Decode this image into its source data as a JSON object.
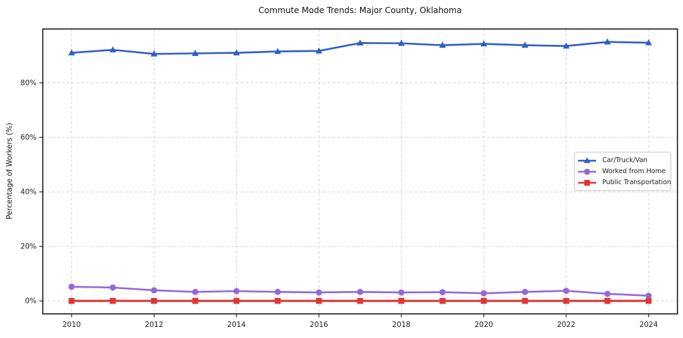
{
  "chart_data": {
    "type": "line",
    "title": "Commute Mode Trends: Major County, Oklahoma",
    "xlabel": "",
    "ylabel": "Percentage of Workers (%)",
    "x": [
      2010,
      2011,
      2012,
      2013,
      2014,
      2015,
      2016,
      2017,
      2018,
      2019,
      2020,
      2021,
      2022,
      2023,
      2024
    ],
    "series": [
      {
        "name": "Car/Truck/Van",
        "color": "#2d5fc5",
        "marker": "triangle",
        "values": [
          91.0,
          92.1,
          90.6,
          90.8,
          91.0,
          91.5,
          91.7,
          94.6,
          94.5,
          93.8,
          94.3,
          93.8,
          93.5,
          95.0,
          94.7
        ]
      },
      {
        "name": "Worked from Home",
        "color": "#9467db",
        "marker": "circle",
        "values": [
          5.2,
          4.9,
          3.9,
          3.3,
          3.6,
          3.3,
          3.1,
          3.3,
          3.1,
          3.2,
          2.8,
          3.3,
          3.7,
          2.6,
          1.9
        ]
      },
      {
        "name": "Public Transportation",
        "color": "#e23636",
        "marker": "square",
        "values": [
          0.0,
          0.0,
          0.0,
          0.0,
          0.0,
          0.0,
          0.0,
          0.0,
          0.0,
          0.0,
          0.0,
          0.0,
          0.0,
          0.0,
          0.0
        ]
      }
    ],
    "xticks": [
      2010,
      2012,
      2014,
      2016,
      2018,
      2020,
      2022,
      2024
    ],
    "yticks": [
      0,
      20,
      40,
      60,
      80
    ],
    "ytick_suffix": "%",
    "xlim": [
      2009.3,
      2024.7
    ],
    "ylim": [
      -4.75,
      99.75
    ],
    "grid": true,
    "legend_position": "center-right"
  }
}
